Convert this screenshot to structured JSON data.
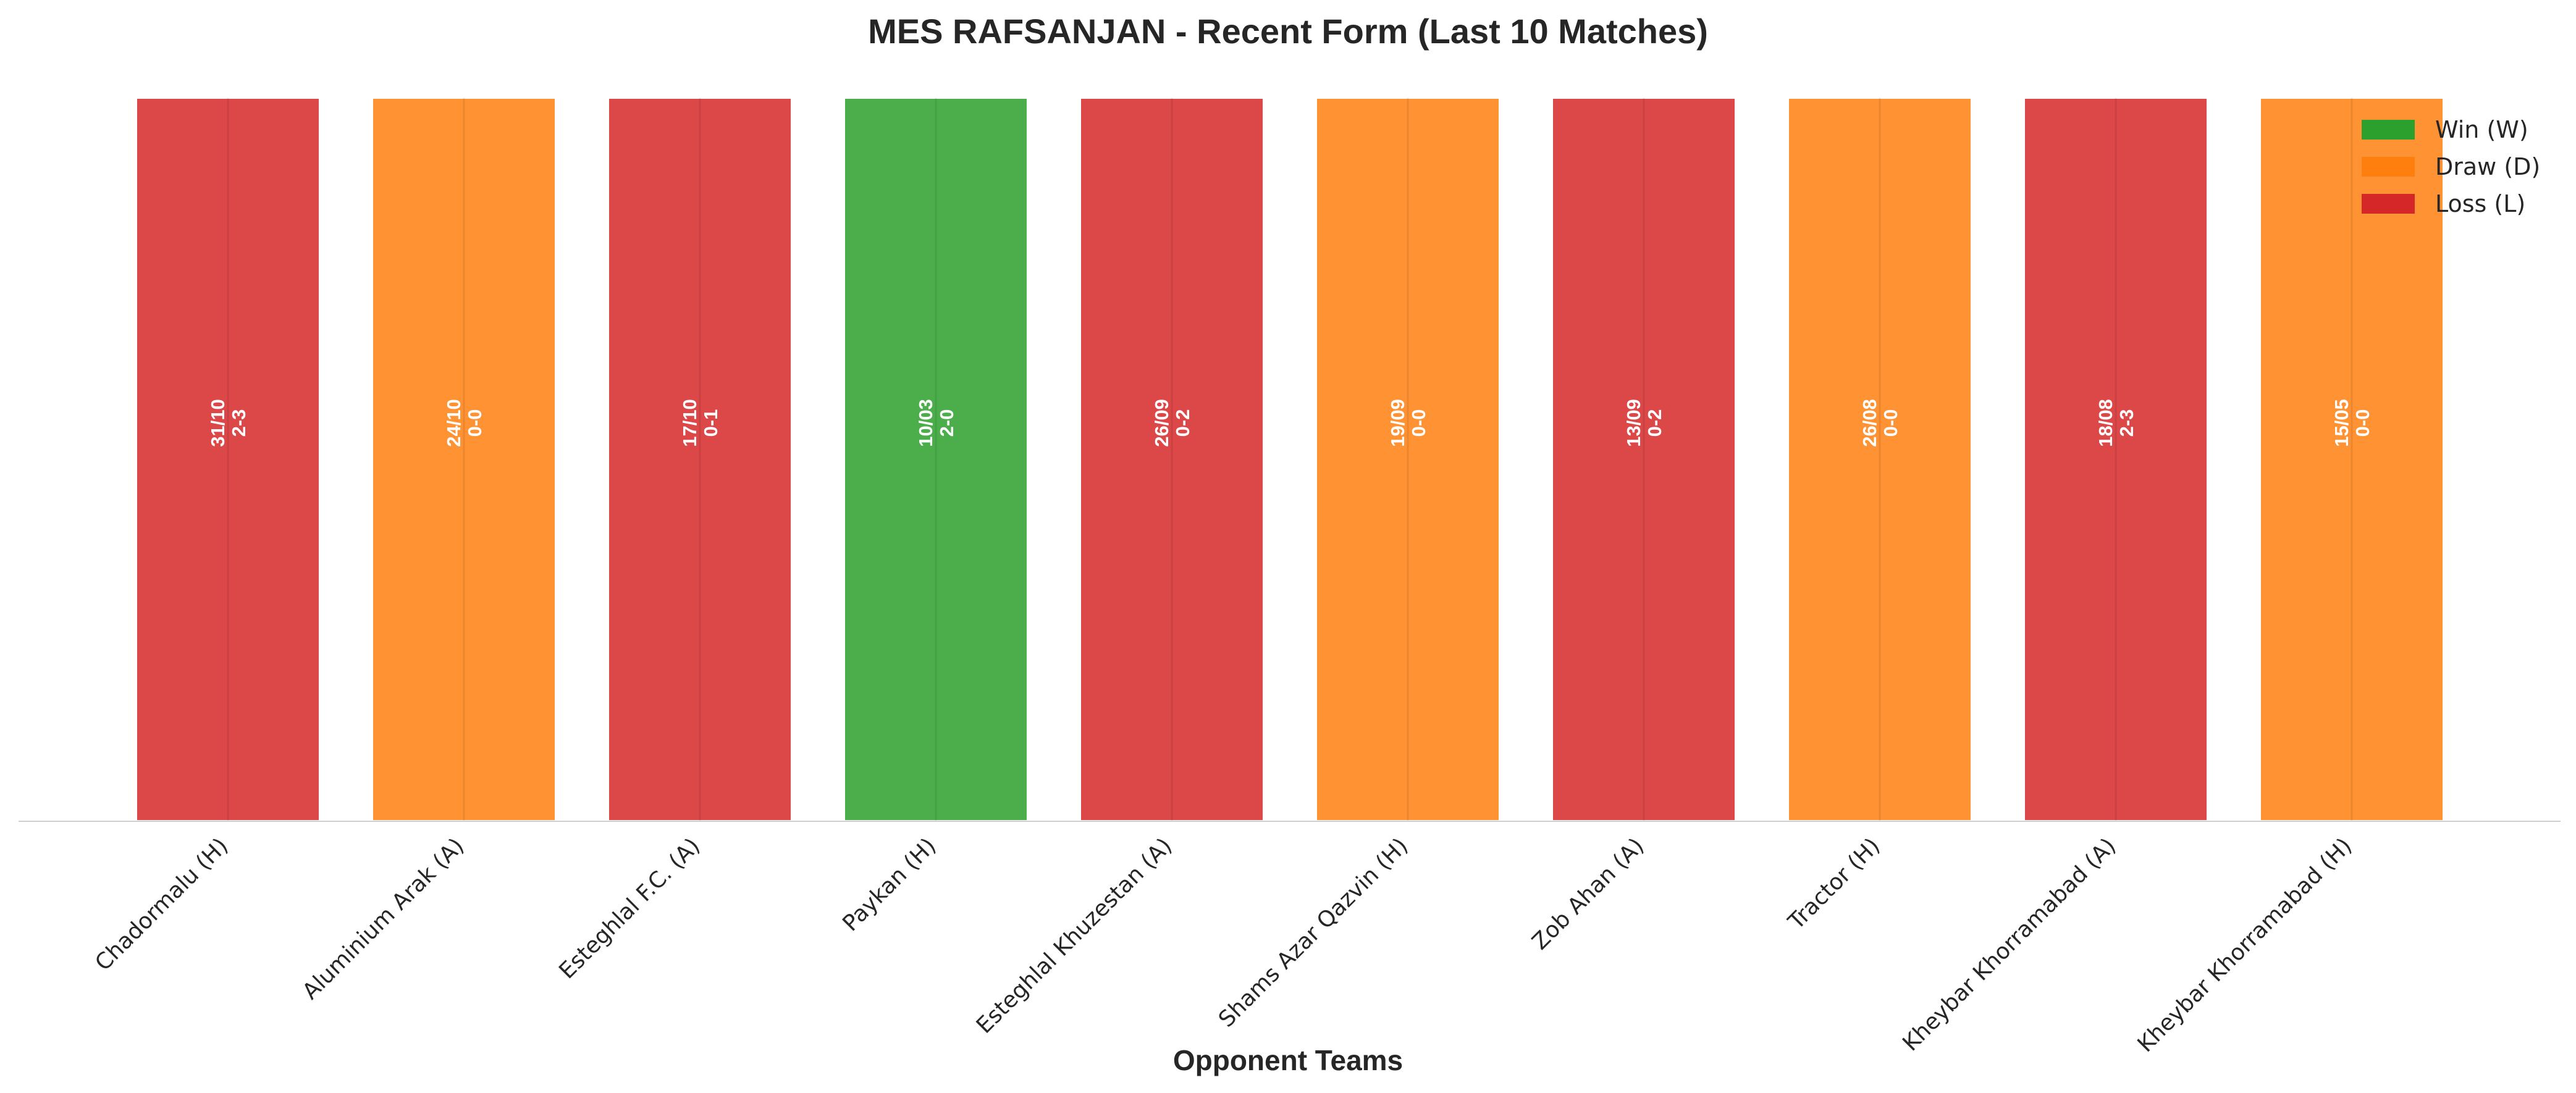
{
  "chart_data": {
    "type": "bar",
    "title": "MES RAFSANJAN - Recent Form (Last 10 Matches)",
    "xlabel": "Opponent Teams",
    "ylabel": "",
    "ylim": [
      0,
      1
    ],
    "grid": false,
    "categories": [
      "Chadormalu (H)",
      "Aluminium Arak (A)",
      "Esteghlal F.C. (A)",
      "Paykan (H)",
      "Esteghlal Khuzestan (A)",
      "Shams Azar Qazvin (H)",
      "Zob Ahan (A)",
      "Tractor (H)",
      "Kheybar Khorramabad (A)",
      "Kheybar Khorramabad (H)"
    ],
    "values": [
      1,
      1,
      1,
      1,
      1,
      1,
      1,
      1,
      1,
      1
    ],
    "results": [
      "L",
      "D",
      "L",
      "W",
      "L",
      "D",
      "L",
      "D",
      "L",
      "D"
    ],
    "dates": [
      "31/10",
      "24/10",
      "17/10",
      "10/03",
      "26/09",
      "19/09",
      "13/09",
      "26/08",
      "18/08",
      "15/05"
    ],
    "scores": [
      "2-3",
      "0-0",
      "0-1",
      "2-0",
      "0-2",
      "0-0",
      "0-2",
      "0-0",
      "2-3",
      "0-0"
    ],
    "legend": {
      "placement": "top-right",
      "entries": [
        {
          "key": "W",
          "label": "Win (W)"
        },
        {
          "key": "D",
          "label": "Draw (D)"
        },
        {
          "key": "L",
          "label": "Loss (L)"
        }
      ]
    },
    "colors": {
      "W": "#2ca02c",
      "D": "#ff7f0e",
      "L": "#d62728"
    }
  }
}
